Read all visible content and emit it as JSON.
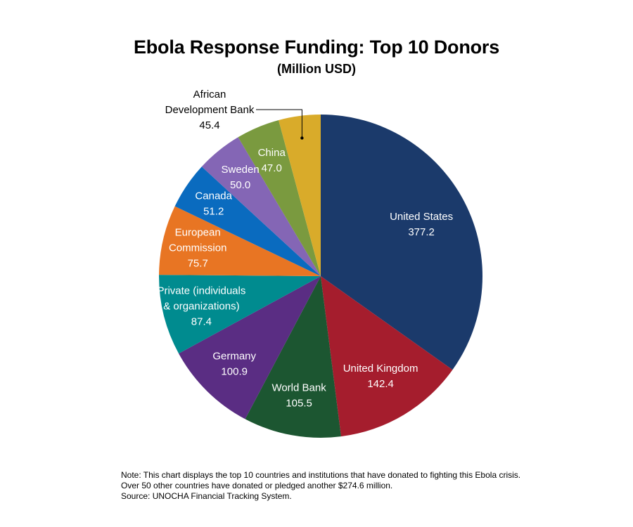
{
  "chart_data": {
    "type": "pie",
    "title": "Ebola Response Funding: Top 10 Donors",
    "subtitle": "(Million USD)",
    "slices": [
      {
        "label_lines": [
          "United States"
        ],
        "value": 377.2,
        "value_text": "377.2",
        "color": "#1b3a6b"
      },
      {
        "label_lines": [
          "United Kingdom"
        ],
        "value": 142.4,
        "value_text": "142.4",
        "color": "#a51d2d"
      },
      {
        "label_lines": [
          "World Bank"
        ],
        "value": 105.5,
        "value_text": "105.5",
        "color": "#1c5631"
      },
      {
        "label_lines": [
          "Germany"
        ],
        "value": 100.9,
        "value_text": "100.9",
        "color": "#5a2d83"
      },
      {
        "label_lines": [
          "Private (individuals",
          "& organizations)"
        ],
        "value": 87.4,
        "value_text": "87.4",
        "color": "#008b8f"
      },
      {
        "label_lines": [
          "European",
          "Commission"
        ],
        "value": 75.7,
        "value_text": "75.7",
        "color": "#e87523"
      },
      {
        "label_lines": [
          "Canada"
        ],
        "value": 51.2,
        "value_text": "51.2",
        "color": "#0a6bbf"
      },
      {
        "label_lines": [
          "Sweden"
        ],
        "value": 50.0,
        "value_text": "50.0",
        "color": "#8466b5"
      },
      {
        "label_lines": [
          "China"
        ],
        "value": 47.0,
        "value_text": "47.0",
        "color": "#7a9a3f"
      },
      {
        "label_lines": [
          "African",
          "Development Bank"
        ],
        "value": 45.4,
        "value_text": "45.4",
        "color": "#d9ab2a",
        "label_outside": true
      }
    ]
  },
  "notes": [
    "Note: This chart displays the top 10 countries and institutions that have donated to fighting this Ebola crisis.",
    "Over 50 other countries have donated or pledged another $274.6 million.",
    "Source: UNOCHA Financial Tracking System."
  ]
}
